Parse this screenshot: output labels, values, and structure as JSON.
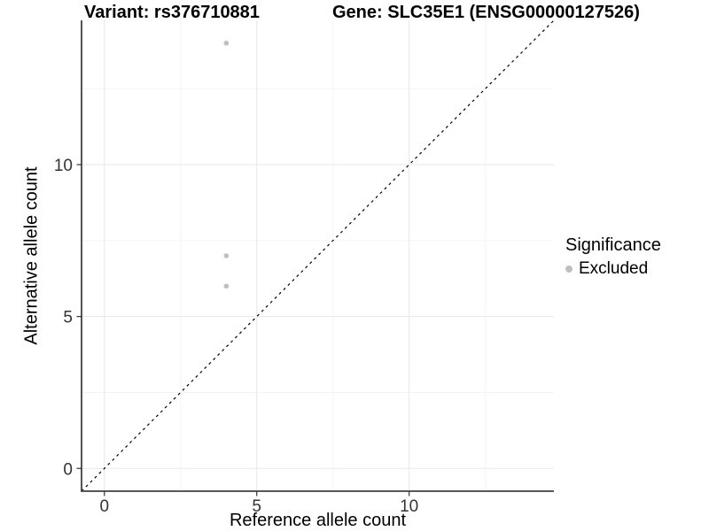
{
  "chart_data": {
    "type": "scatter",
    "title_left": "Variant: rs376710881",
    "title_right": "Gene: SLC35E1 (ENSG00000127526)",
    "xlabel": "Reference allele count",
    "ylabel": "Alternative allele count",
    "xlim": [
      -0.75,
      14.75
    ],
    "ylim": [
      -0.75,
      14.75
    ],
    "x_ticks": [
      0,
      5,
      10
    ],
    "y_ticks": [
      0,
      5,
      10
    ],
    "x_minor_ticks": [
      2.5,
      7.5,
      12.5
    ],
    "y_minor_ticks": [
      2.5,
      7.5,
      12.5
    ],
    "grid": "on",
    "identity_line": {
      "slope": 1,
      "intercept": 0,
      "style": "dashed",
      "color": "#000000"
    },
    "series": [
      {
        "name": "Excluded",
        "color": "#bfbfbf",
        "points": [
          {
            "x": 4,
            "y": 14
          },
          {
            "x": 4,
            "y": 7
          },
          {
            "x": 4,
            "y": 6
          }
        ]
      }
    ],
    "legend": {
      "title": "Significance",
      "position": "right",
      "items": [
        {
          "label": "Excluded",
          "color": "#bfbfbf"
        }
      ]
    },
    "colors": {
      "grid_major": "#e9e9e9",
      "grid_minor": "#f5f5f5",
      "axis_line": "#404040",
      "tick_text": "#333333",
      "title_text": "#000000"
    }
  }
}
